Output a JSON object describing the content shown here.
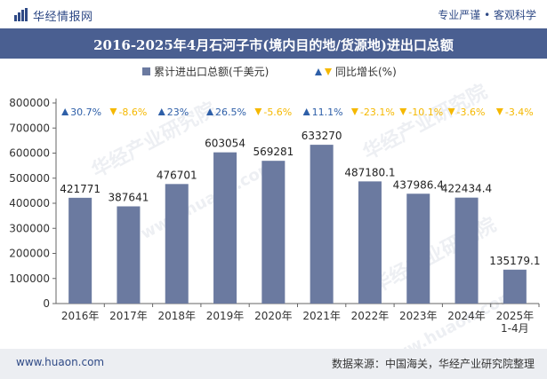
{
  "header": {
    "brand": "华经情报网",
    "tagline": "专业严谨 • 客观科学"
  },
  "title": "2016-2025年4月石河子市(境内目的地/货源地)进出口总额",
  "footer": {
    "site": "www.huaon.com",
    "source": "数据来源：中国海关，华经产业研究院整理"
  },
  "watermarks": [
    "华经产业研究院",
    "www.huaon.com",
    "华经产业研究院",
    "华经产业研究院",
    "www.huaon.com"
  ],
  "colors": {
    "bar": "#6b7aa0",
    "up": "#2e5fa8",
    "down": "#f5b800",
    "titlebar": "#4a5f91"
  },
  "chart_data": {
    "type": "bar",
    "categories": [
      "2016年",
      "2017年",
      "2018年",
      "2019年",
      "2020年",
      "2021年",
      "2022年",
      "2023年",
      "2024年",
      "2025年\n1-4月"
    ],
    "series": [
      {
        "name": "累计进出口总额(千美元)",
        "values": [
          421771,
          387641,
          476701,
          603054,
          569281,
          633270,
          487180.1,
          437986.4,
          422434.4,
          135179.1
        ],
        "labels": [
          "421771",
          "387641",
          "476701",
          "603054",
          "569281",
          "633270",
          "487180.1",
          "437986.4",
          "422434.4",
          "135179.1"
        ]
      },
      {
        "name": "同比增长(%)",
        "values": [
          30.7,
          -8.6,
          23,
          26.5,
          -5.6,
          11.1,
          -23.1,
          -10.1,
          -3.6,
          -3.4
        ],
        "labels": [
          "30.7%",
          "-8.6%",
          "23%",
          "26.5%",
          "-5.6%",
          "11.1%",
          "-23.1%",
          "-10.1%",
          "-3.6%",
          "-3.4%"
        ]
      }
    ],
    "yticks": [
      "0",
      "100000",
      "200000",
      "300000",
      "400000",
      "500000",
      "600000",
      "700000",
      "800000"
    ],
    "ylim": [
      0,
      800000
    ],
    "legend_position": "top-center",
    "grid": false
  }
}
